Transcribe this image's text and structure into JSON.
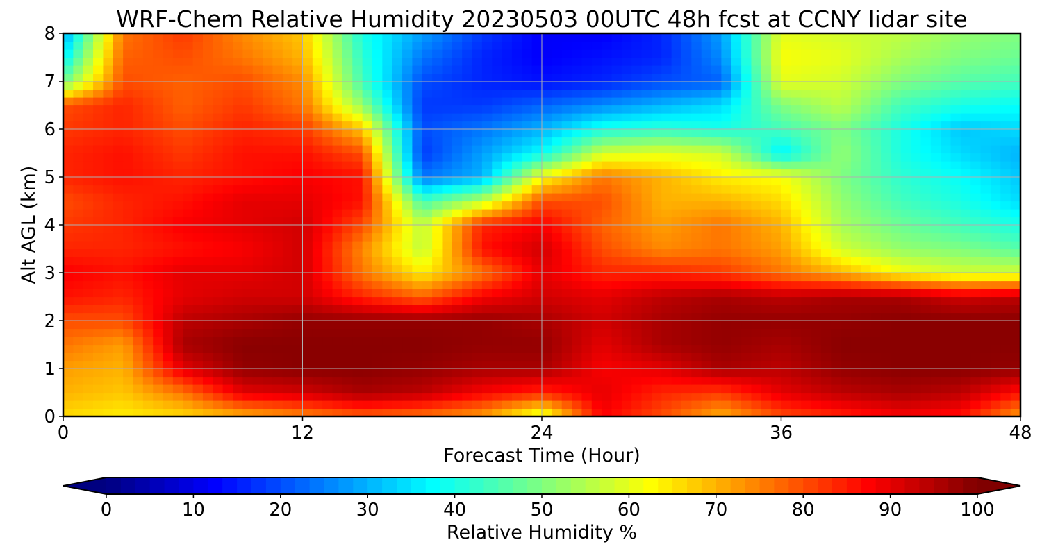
{
  "chart_data": {
    "type": "heatmap",
    "title": "WRF-Chem Relative Humidity 20230503 00UTC 48h fcst at CCNY lidar site",
    "xlabel": "Forecast Time (Hour)",
    "ylabel": "Alt AGL (km)",
    "xlim": [
      0,
      48
    ],
    "ylim": [
      0,
      8
    ],
    "xticks": [
      "0",
      "12",
      "24",
      "36",
      "48"
    ],
    "yticks": [
      "0",
      "1",
      "2",
      "3",
      "4",
      "5",
      "6",
      "7",
      "8"
    ],
    "grid": true,
    "colorbar": {
      "label": "Relative Humidity %",
      "min": 0,
      "max": 100,
      "ticks": [
        "0",
        "10",
        "20",
        "30",
        "40",
        "50",
        "60",
        "70",
        "80",
        "90",
        "100"
      ],
      "colormap": "jet",
      "extend": "both"
    },
    "x": [
      0,
      3,
      6,
      9,
      12,
      15,
      18,
      21,
      24,
      27,
      30,
      33,
      36,
      39,
      42,
      45,
      48
    ],
    "y": [
      0,
      0.5,
      1,
      1.5,
      2,
      2.5,
      3,
      3.5,
      4,
      4.5,
      5,
      5.5,
      6,
      6.5,
      7,
      7.5,
      8
    ],
    "z": [
      [
        66,
        64,
        66,
        70,
        74,
        78,
        76,
        72,
        58,
        88,
        80,
        70,
        80,
        84,
        88,
        86,
        72
      ],
      [
        70,
        68,
        76,
        90,
        92,
        96,
        94,
        88,
        84,
        90,
        84,
        82,
        90,
        94,
        96,
        94,
        86
      ],
      [
        72,
        70,
        90,
        98,
        99,
        99,
        98,
        96,
        96,
        88,
        90,
        96,
        94,
        98,
        99,
        99,
        98
      ],
      [
        76,
        72,
        96,
        99,
        99,
        99,
        99,
        98,
        98,
        90,
        96,
        98,
        96,
        99,
        99,
        99,
        99
      ],
      [
        80,
        80,
        94,
        96,
        98,
        98,
        98,
        98,
        96,
        92,
        96,
        98,
        98,
        98,
        99,
        99,
        99
      ],
      [
        86,
        84,
        90,
        92,
        92,
        84,
        78,
        88,
        92,
        90,
        94,
        96,
        94,
        96,
        96,
        92,
        94
      ],
      [
        88,
        86,
        90,
        90,
        92,
        76,
        64,
        76,
        90,
        84,
        84,
        82,
        76,
        70,
        62,
        58,
        58
      ],
      [
        84,
        84,
        86,
        88,
        92,
        74,
        56,
        86,
        92,
        80,
        74,
        76,
        72,
        58,
        52,
        50,
        46
      ],
      [
        82,
        84,
        88,
        90,
        92,
        80,
        56,
        84,
        88,
        78,
        72,
        76,
        70,
        54,
        48,
        44,
        40
      ],
      [
        80,
        84,
        86,
        90,
        90,
        86,
        44,
        56,
        80,
        80,
        70,
        70,
        66,
        52,
        44,
        40,
        34
      ],
      [
        84,
        86,
        84,
        86,
        88,
        86,
        24,
        30,
        62,
        76,
        70,
        64,
        62,
        50,
        42,
        38,
        32
      ],
      [
        84,
        86,
        82,
        86,
        86,
        80,
        18,
        28,
        38,
        58,
        60,
        58,
        36,
        52,
        40,
        34,
        30
      ],
      [
        82,
        84,
        80,
        84,
        82,
        68,
        20,
        24,
        30,
        40,
        42,
        40,
        44,
        50,
        40,
        32,
        34
      ],
      [
        80,
        84,
        78,
        82,
        76,
        52,
        18,
        18,
        22,
        26,
        30,
        34,
        50,
        56,
        44,
        40,
        38
      ],
      [
        48,
        80,
        78,
        80,
        74,
        44,
        20,
        16,
        14,
        16,
        20,
        22,
        60,
        58,
        50,
        46,
        44
      ],
      [
        36,
        78,
        80,
        76,
        70,
        42,
        24,
        16,
        12,
        14,
        16,
        26,
        62,
        60,
        54,
        50,
        48
      ],
      [
        28,
        76,
        82,
        74,
        68,
        40,
        28,
        18,
        12,
        12,
        16,
        28,
        60,
        58,
        56,
        52,
        50
      ]
    ]
  }
}
